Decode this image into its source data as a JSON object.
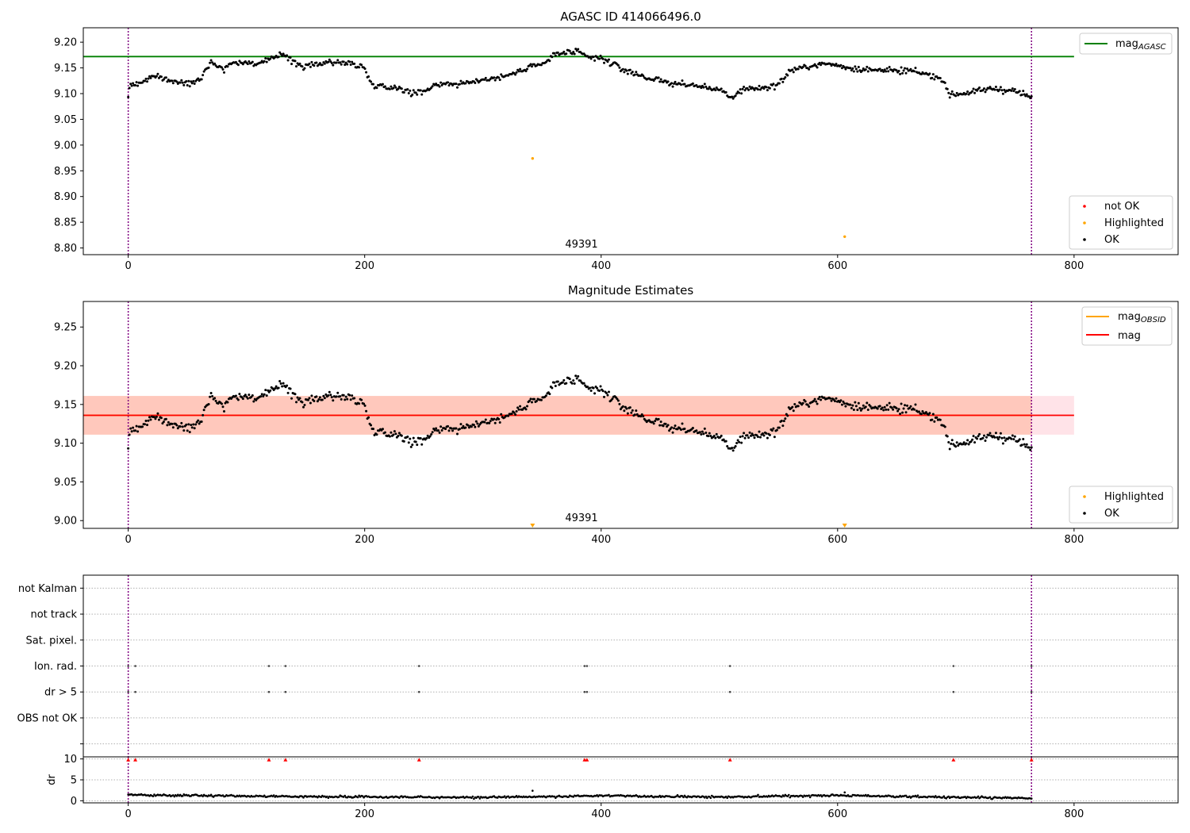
{
  "figure_type": "multi-panel scatter / line plot",
  "colors": {
    "ok": "#000000",
    "highlighted": "#ffa500",
    "not_ok": "#ff0000",
    "agasc_line": "#008000",
    "mag_line": "#ff0000",
    "mag_obsid_line": "#ffa500",
    "band_outer": "#ffc0cb",
    "band_inner": "#ffa07a",
    "obs_boundary": "#800080",
    "grid": "#b0b0b0"
  },
  "chart_data": [
    {
      "type": "scatter",
      "title": "AGASC ID 414066496.0",
      "xlim": [
        -38,
        888
      ],
      "ylim": [
        8.787,
        9.228
      ],
      "xticks": [
        0,
        200,
        400,
        600,
        800
      ],
      "yticks": [
        8.8,
        8.85,
        8.9,
        8.95,
        9.0,
        9.05,
        9.1,
        9.15,
        9.2
      ],
      "ytick_labels": [
        "8.80",
        "8.85",
        "8.90",
        "8.95",
        "9.00",
        "9.05",
        "9.10",
        "9.15",
        "9.20"
      ],
      "obs_boundaries_x": [
        0,
        764
      ],
      "obsid_label": {
        "text": "49391",
        "x": 382,
        "y": 8.808
      },
      "hlines": [
        {
          "name": "mag_AGASC",
          "y": 9.172,
          "xmin": -38,
          "xmax": 800,
          "color": "#008000"
        }
      ],
      "series": [
        {
          "name": "not OK",
          "color": "#ff0000",
          "points": []
        },
        {
          "name": "Highlighted",
          "color": "#ffa500",
          "points": [
            [
              342,
              8.974
            ],
            [
              606,
              8.822
            ]
          ]
        },
        {
          "name": "OK",
          "color": "#000000",
          "trend": [
            [
              0,
              9.095
            ],
            [
              2,
              9.118
            ],
            [
              10,
              9.12
            ],
            [
              20,
              9.133
            ],
            [
              30,
              9.13
            ],
            [
              40,
              9.122
            ],
            [
              50,
              9.12
            ],
            [
              60,
              9.128
            ],
            [
              70,
              9.162
            ],
            [
              80,
              9.148
            ],
            [
              90,
              9.162
            ],
            [
              100,
              9.16
            ],
            [
              110,
              9.158
            ],
            [
              120,
              9.165
            ],
            [
              130,
              9.18
            ],
            [
              140,
              9.16
            ],
            [
              150,
              9.152
            ],
            [
              160,
              9.158
            ],
            [
              170,
              9.162
            ],
            [
              180,
              9.16
            ],
            [
              190,
              9.158
            ],
            [
              200,
              9.15
            ],
            [
              205,
              9.12
            ],
            [
              220,
              9.112
            ],
            [
              230,
              9.112
            ],
            [
              240,
              9.1
            ],
            [
              250,
              9.105
            ],
            [
              260,
              9.118
            ],
            [
              270,
              9.12
            ],
            [
              280,
              9.118
            ],
            [
              290,
              9.122
            ],
            [
              300,
              9.128
            ],
            [
              310,
              9.13
            ],
            [
              320,
              9.135
            ],
            [
              330,
              9.142
            ],
            [
              340,
              9.155
            ],
            [
              350,
              9.155
            ],
            [
              360,
              9.175
            ],
            [
              370,
              9.18
            ],
            [
              380,
              9.18
            ],
            [
              390,
              9.17
            ],
            [
              400,
              9.168
            ],
            [
              410,
              9.158
            ],
            [
              420,
              9.145
            ],
            [
              430,
              9.138
            ],
            [
              440,
              9.13
            ],
            [
              450,
              9.125
            ],
            [
              460,
              9.12
            ],
            [
              470,
              9.118
            ],
            [
              480,
              9.115
            ],
            [
              490,
              9.112
            ],
            [
              500,
              9.108
            ],
            [
              510,
              9.09
            ],
            [
              520,
              9.11
            ],
            [
              530,
              9.11
            ],
            [
              540,
              9.112
            ],
            [
              550,
              9.118
            ],
            [
              560,
              9.145
            ],
            [
              570,
              9.15
            ],
            [
              580,
              9.155
            ],
            [
              590,
              9.158
            ],
            [
              600,
              9.155
            ],
            [
              610,
              9.15
            ],
            [
              620,
              9.148
            ],
            [
              630,
              9.145
            ],
            [
              640,
              9.148
            ],
            [
              650,
              9.142
            ],
            [
              660,
              9.145
            ],
            [
              670,
              9.14
            ],
            [
              680,
              9.135
            ],
            [
              690,
              9.125
            ],
            [
              695,
              9.097
            ],
            [
              710,
              9.102
            ],
            [
              720,
              9.105
            ],
            [
              730,
              9.11
            ],
            [
              740,
              9.108
            ],
            [
              750,
              9.105
            ],
            [
              764,
              9.092
            ]
          ],
          "scatter": 0.008,
          "n_points": 764
        }
      ],
      "legend_lines": {
        "position": "upper right",
        "entries": [
          {
            "label": "mag",
            "subscript": "AGASC",
            "color": "#008000"
          }
        ]
      },
      "legend_points": {
        "position": "lower right",
        "entries": [
          {
            "label": "not OK",
            "color": "#ff0000"
          },
          {
            "label": "Highlighted",
            "color": "#ffa500"
          },
          {
            "label": "OK",
            "color": "#000000"
          }
        ]
      }
    },
    {
      "type": "scatter",
      "title": "Magnitude Estimates",
      "xlim": [
        -38,
        888
      ],
      "ylim": [
        8.99,
        9.283
      ],
      "xticks": [
        0,
        200,
        400,
        600,
        800
      ],
      "yticks": [
        9.0,
        9.05,
        9.1,
        9.15,
        9.2,
        9.25
      ],
      "ytick_labels": [
        "9.00",
        "9.05",
        "9.10",
        "9.15",
        "9.20",
        "9.25"
      ],
      "obs_boundaries_x": [
        0,
        764
      ],
      "obsid_label": {
        "text": "49391",
        "x": 382,
        "y": 9.0
      },
      "bands": [
        {
          "x0": -38,
          "x1": 800,
          "y0": 9.111,
          "y1": 9.161,
          "color": "#ffc0cb",
          "opacity": 0.45
        },
        {
          "x0": -38,
          "x1": 764,
          "y0": 9.111,
          "y1": 9.161,
          "color": "#ffa07a",
          "opacity": 0.4
        }
      ],
      "hlines": [
        {
          "name": "mag_OBSID",
          "y": 9.136,
          "xmin": -38,
          "xmax": 764,
          "color": "#ffa500"
        },
        {
          "name": "mag",
          "y": 9.136,
          "xmin": -38,
          "xmax": 800,
          "color": "#ff0000"
        }
      ],
      "series": [
        {
          "name": "Highlighted",
          "color": "#ffa500",
          "marker": "triangle-down",
          "points": [
            [
              342,
              8.992
            ],
            [
              606,
              8.992
            ]
          ]
        },
        {
          "name": "OK",
          "color": "#000000",
          "trend": [
            [
              0,
              9.095
            ],
            [
              2,
              9.118
            ],
            [
              10,
              9.12
            ],
            [
              20,
              9.133
            ],
            [
              30,
              9.13
            ],
            [
              40,
              9.122
            ],
            [
              50,
              9.12
            ],
            [
              60,
              9.128
            ],
            [
              70,
              9.162
            ],
            [
              80,
              9.148
            ],
            [
              90,
              9.162
            ],
            [
              100,
              9.16
            ],
            [
              110,
              9.158
            ],
            [
              120,
              9.165
            ],
            [
              130,
              9.18
            ],
            [
              140,
              9.16
            ],
            [
              150,
              9.152
            ],
            [
              160,
              9.158
            ],
            [
              170,
              9.162
            ],
            [
              180,
              9.16
            ],
            [
              190,
              9.158
            ],
            [
              200,
              9.15
            ],
            [
              205,
              9.12
            ],
            [
              220,
              9.112
            ],
            [
              230,
              9.112
            ],
            [
              240,
              9.1
            ],
            [
              250,
              9.105
            ],
            [
              260,
              9.118
            ],
            [
              270,
              9.12
            ],
            [
              280,
              9.118
            ],
            [
              290,
              9.122
            ],
            [
              300,
              9.128
            ],
            [
              310,
              9.13
            ],
            [
              320,
              9.135
            ],
            [
              330,
              9.142
            ],
            [
              340,
              9.155
            ],
            [
              350,
              9.155
            ],
            [
              360,
              9.175
            ],
            [
              370,
              9.18
            ],
            [
              380,
              9.18
            ],
            [
              390,
              9.17
            ],
            [
              400,
              9.168
            ],
            [
              410,
              9.158
            ],
            [
              420,
              9.145
            ],
            [
              430,
              9.138
            ],
            [
              440,
              9.13
            ],
            [
              450,
              9.125
            ],
            [
              460,
              9.12
            ],
            [
              470,
              9.118
            ],
            [
              480,
              9.115
            ],
            [
              490,
              9.112
            ],
            [
              500,
              9.108
            ],
            [
              510,
              9.09
            ],
            [
              520,
              9.11
            ],
            [
              530,
              9.11
            ],
            [
              540,
              9.112
            ],
            [
              550,
              9.118
            ],
            [
              560,
              9.145
            ],
            [
              570,
              9.15
            ],
            [
              580,
              9.155
            ],
            [
              590,
              9.158
            ],
            [
              600,
              9.155
            ],
            [
              610,
              9.15
            ],
            [
              620,
              9.148
            ],
            [
              630,
              9.145
            ],
            [
              640,
              9.148
            ],
            [
              650,
              9.142
            ],
            [
              660,
              9.145
            ],
            [
              670,
              9.14
            ],
            [
              680,
              9.135
            ],
            [
              690,
              9.125
            ],
            [
              695,
              9.097
            ],
            [
              710,
              9.102
            ],
            [
              720,
              9.105
            ],
            [
              730,
              9.11
            ],
            [
              740,
              9.108
            ],
            [
              750,
              9.105
            ],
            [
              764,
              9.092
            ]
          ],
          "scatter": 0.008,
          "n_points": 764
        }
      ],
      "legend_lines": {
        "position": "upper right",
        "entries": [
          {
            "label": "mag",
            "subscript": "OBSID",
            "color": "#ffa500"
          },
          {
            "label": "mag",
            "subscript": "",
            "color": "#ff0000"
          }
        ]
      },
      "legend_points": {
        "position": "lower right",
        "entries": [
          {
            "label": "Highlighted",
            "color": "#ffa500"
          },
          {
            "label": "OK",
            "color": "#000000"
          }
        ]
      }
    },
    {
      "type": "scatter",
      "title": "",
      "xlim": [
        -38,
        888
      ],
      "ylim": [
        -0.5,
        6.5
      ],
      "yticks": [
        0,
        1,
        2,
        3,
        4,
        5,
        6
      ],
      "ytick_labels": [
        "",
        "OBS not OK",
        "dr > 5",
        "Ion. rad.",
        "Sat. pixel.",
        "not track",
        "not Kalman"
      ],
      "grid": "horizontal dotted",
      "obs_boundaries_x": [
        0,
        764
      ],
      "series": [
        {
          "name": "Ion. rad.",
          "y": 3,
          "x": [
            0,
            6,
            119,
            133,
            246,
            386,
            388,
            509,
            698,
            764
          ]
        },
        {
          "name": "dr > 5",
          "y": 2,
          "x": [
            0,
            6,
            119,
            133,
            246,
            386,
            388,
            509,
            698,
            764
          ]
        }
      ]
    },
    {
      "type": "scatter",
      "title": "",
      "ylabel": "dr",
      "xlim": [
        -38,
        888
      ],
      "ylim": [
        -0.5,
        10.5
      ],
      "xticks": [
        0,
        200,
        400,
        600,
        800
      ],
      "yticks": [
        0,
        5,
        10
      ],
      "series": [
        {
          "name": "dr",
          "color": "#000000",
          "trend": [
            [
              0,
              1.4
            ],
            [
              100,
              1.1
            ],
            [
              200,
              0.9
            ],
            [
              300,
              0.8
            ],
            [
              400,
              1.2
            ],
            [
              500,
              0.9
            ],
            [
              600,
              1.3
            ],
            [
              700,
              0.8
            ],
            [
              764,
              0.6
            ]
          ],
          "scatter": 0.35,
          "n_points": 764,
          "extra_points": [
            [
              342,
              2.4
            ],
            [
              606,
              2.0
            ]
          ]
        },
        {
          "name": "dr > 5",
          "color": "#ff0000",
          "marker": "triangle-up",
          "x": [
            0,
            6,
            119,
            133,
            246,
            386,
            388,
            509,
            698,
            764
          ],
          "y": 9.8
        }
      ]
    }
  ]
}
